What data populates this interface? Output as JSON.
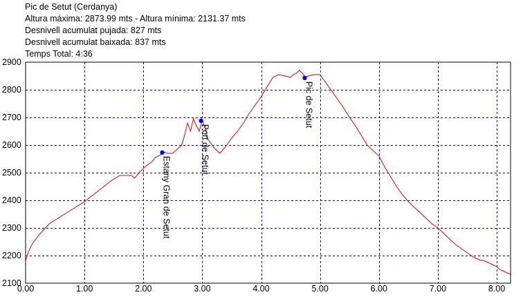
{
  "header": {
    "title": "Pic de Setut (Cerdanya)",
    "line2": "Altura máxima: 2873.99 mts - Altura mínima: 2131.37 mts",
    "line3": "Desnivell acumulat pujada: 827 mts",
    "line4": "Desnivell acumulat baixada: 837 mts",
    "line5": "Temps Total: 4:36"
  },
  "colors": {
    "line": "#e00000",
    "grid": "#0000cc",
    "waypoint": "#0000ee",
    "frame": "#000000"
  },
  "chart_data": {
    "type": "line",
    "title": "Pic de Setut (Cerdanya)",
    "xlim": [
      0,
      8.25
    ],
    "ylim": [
      2100,
      2900
    ],
    "x_ticks": [
      "0.00",
      "1.00",
      "2.00",
      "3.00",
      "4.00",
      "5.00",
      "6.00",
      "7.00",
      "8.00"
    ],
    "y_ticks": [
      "2100",
      "2200",
      "2300",
      "2400",
      "2500",
      "2600",
      "2700",
      "2800",
      "2900"
    ],
    "grid": true,
    "series": [
      {
        "x": [
          0.0,
          0.05,
          0.12,
          0.25,
          0.4,
          0.55,
          0.7,
          0.85,
          1.0,
          1.15,
          1.3,
          1.45,
          1.6,
          1.7,
          1.8,
          1.85,
          1.95,
          2.05,
          2.15,
          2.2,
          2.3,
          2.35,
          2.4,
          2.5,
          2.55,
          2.65,
          2.7,
          2.75,
          2.8,
          2.85,
          2.9,
          2.95,
          3.0,
          3.05,
          3.1,
          3.2,
          3.3,
          3.4,
          3.5,
          3.6,
          3.7,
          3.8,
          3.9,
          4.0,
          4.1,
          4.2,
          4.3,
          4.4,
          4.5,
          4.55,
          4.6,
          4.65,
          4.7,
          4.75,
          4.8,
          4.9,
          5.0,
          5.1,
          5.2,
          5.3,
          5.4,
          5.5,
          5.6,
          5.7,
          5.8,
          5.9,
          6.0,
          6.1,
          6.2,
          6.3,
          6.4,
          6.5,
          6.6,
          6.7,
          6.8,
          6.9,
          7.0,
          7.1,
          7.2,
          7.3,
          7.4,
          7.5,
          7.6,
          7.7,
          7.8,
          7.9,
          8.0,
          8.05,
          8.1,
          8.15,
          8.2,
          8.25
        ],
        "y": [
          2180,
          2215,
          2245,
          2280,
          2315,
          2335,
          2355,
          2375,
          2395,
          2420,
          2445,
          2470,
          2490,
          2490,
          2490,
          2480,
          2505,
          2525,
          2540,
          2555,
          2565,
          2575,
          2570,
          2570,
          2580,
          2600,
          2635,
          2680,
          2650,
          2695,
          2670,
          2650,
          2690,
          2660,
          2620,
          2590,
          2570,
          2595,
          2625,
          2650,
          2680,
          2715,
          2745,
          2775,
          2810,
          2845,
          2855,
          2850,
          2845,
          2855,
          2860,
          2870,
          2860,
          2845,
          2850,
          2855,
          2855,
          2825,
          2795,
          2765,
          2735,
          2700,
          2670,
          2635,
          2600,
          2580,
          2560,
          2520,
          2485,
          2450,
          2420,
          2395,
          2375,
          2355,
          2335,
          2315,
          2300,
          2280,
          2260,
          2240,
          2225,
          2210,
          2195,
          2185,
          2180,
          2170,
          2160,
          2150,
          2145,
          2140,
          2135,
          2132
        ]
      }
    ],
    "waypoints": [
      {
        "name": "Estany Gran de Setut",
        "x": 2.32,
        "y": 2573
      },
      {
        "name": "Port de Setut",
        "x": 2.98,
        "y": 2688
      },
      {
        "name": "Pic de Setut",
        "x": 4.74,
        "y": 2843
      }
    ]
  }
}
